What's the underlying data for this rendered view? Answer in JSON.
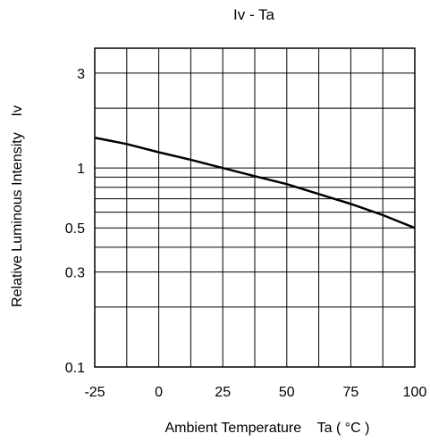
{
  "chart_data": {
    "type": "line",
    "title": "Iv - Ta",
    "xlabel": "Ambient Temperature    Ta ( °C )",
    "ylabel": "Relative Luminous Intensity    Iv",
    "xlim": [
      -25,
      100
    ],
    "ylim": [
      0.1,
      4
    ],
    "yscale": "log",
    "grid": true,
    "x_ticks": [
      -25,
      0,
      25,
      50,
      75,
      100
    ],
    "x_tick_labels": [
      "-25",
      "0",
      "25",
      "50",
      "75",
      "100"
    ],
    "y_ticks": [
      0.1,
      0.3,
      0.5,
      1,
      3
    ],
    "y_tick_labels": [
      "0.1",
      "0.3",
      "0.5",
      "1",
      "3"
    ],
    "series": [
      {
        "x": [
          -25,
          -12.5,
          0,
          12.5,
          25,
          37.5,
          50,
          62.5,
          75,
          87.5,
          100
        ],
        "y": [
          1.42,
          1.32,
          1.2,
          1.1,
          1.0,
          0.91,
          0.83,
          0.74,
          0.66,
          0.58,
          0.5
        ]
      }
    ],
    "colors": {
      "line": "#000000",
      "grid": "#000000"
    }
  }
}
